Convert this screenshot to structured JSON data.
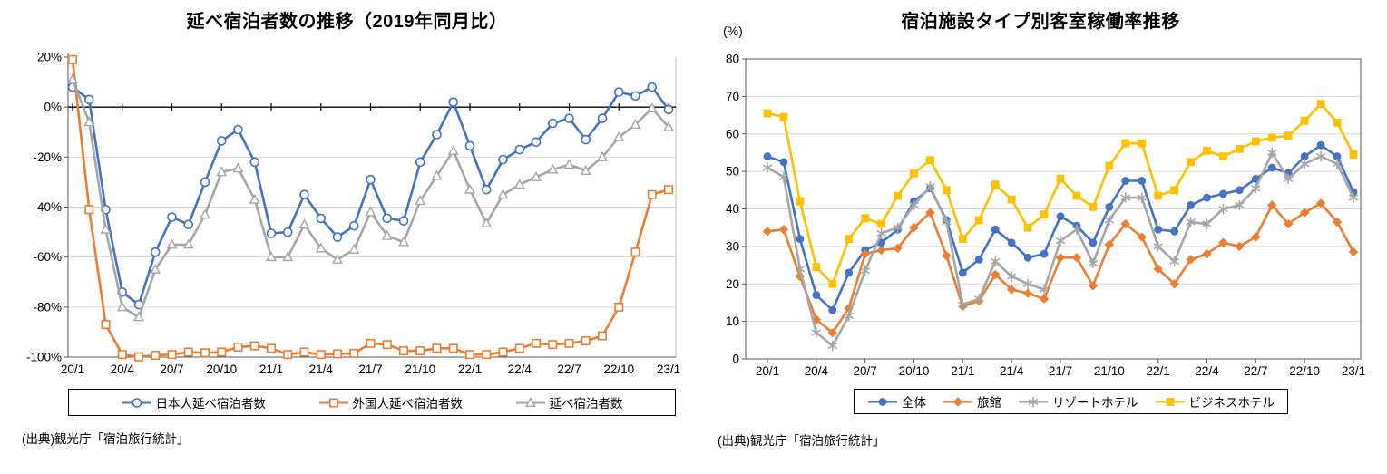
{
  "chart_data": [
    {
      "type": "line",
      "title": "延べ宿泊者数の推移（2019年同月比）",
      "source": "(出典)観光庁「宿泊旅行統計」",
      "n_points": 37,
      "x_tick_labels": [
        "20/1",
        "20/4",
        "20/7",
        "20/10",
        "21/1",
        "21/4",
        "21/7",
        "21/10",
        "22/1",
        "22/4",
        "22/7",
        "22/10",
        "23/1"
      ],
      "months_per_tick": 3,
      "ylim": [
        -100,
        20
      ],
      "y_ticks": [
        20,
        0,
        -20,
        -40,
        -60,
        -80,
        -100
      ],
      "y_tick_labels": [
        "20%",
        "0%",
        "-20%",
        "-40%",
        "-60%",
        "-80%",
        "-100%"
      ],
      "grid": true,
      "legend_position": "bottom",
      "series": [
        {
          "name": "日本人延べ宿泊者数",
          "color": "#4472C4",
          "marker": "circle-open",
          "values": [
            8,
            3,
            -41,
            -74,
            -79,
            -58,
            -44,
            -47,
            -30,
            -13.5,
            -9,
            -22,
            -50.5,
            -50,
            -35,
            -44.5,
            -52,
            -47.5,
            -29,
            -44.5,
            -45.5,
            -22,
            -11,
            2,
            -15.5,
            -33,
            -21,
            -17,
            -14,
            -6.5,
            -4.5,
            -13,
            -4.5,
            6,
            4.5,
            8,
            -1
          ]
        },
        {
          "name": "外国人延べ宿泊者数",
          "color": "#ED7D31",
          "marker": "square-open",
          "values": [
            19,
            -41,
            -87,
            -99,
            -99.9,
            -99.3,
            -99,
            -98,
            -98.3,
            -98,
            -96,
            -95.5,
            -96.5,
            -99,
            -98,
            -99,
            -98.7,
            -98.5,
            -94.5,
            -95,
            -97.5,
            -97.5,
            -96.5,
            -96.5,
            -99,
            -99,
            -98,
            -96.5,
            -94.5,
            -95,
            -94.5,
            -93.5,
            -91.5,
            -80,
            -58,
            -35,
            -33
          ]
        },
        {
          "name": "延べ宿泊者数",
          "color": "#A6A6A6",
          "marker": "triangle-open",
          "values": [
            11,
            -6,
            -49,
            -80,
            -84,
            -65,
            -55,
            -55,
            -43,
            -26,
            -24.5,
            -37,
            -60,
            -60,
            -47,
            -56.5,
            -61,
            -57,
            -42,
            -51.5,
            -54,
            -37.5,
            -27.5,
            -17.5,
            -33,
            -46.5,
            -35,
            -31,
            -28,
            -25,
            -23,
            -25.5,
            -20,
            -12,
            -7,
            -0.5,
            -8
          ]
        }
      ]
    },
    {
      "type": "line",
      "title": "宿泊施設タイプ別客室稼働率推移",
      "unit_label": "(%)",
      "source": "(出典)観光庁「宿泊旅行統計」",
      "n_points": 37,
      "x_tick_labels": [
        "20/1",
        "20/4",
        "20/7",
        "20/10",
        "21/1",
        "21/4",
        "21/7",
        "21/10",
        "22/1",
        "22/4",
        "22/7",
        "22/10",
        "23/1"
      ],
      "months_per_tick": 3,
      "ylim": [
        0,
        80
      ],
      "y_ticks": [
        80,
        70,
        60,
        50,
        40,
        30,
        20,
        10,
        0
      ],
      "y_tick_labels": [
        "80",
        "70",
        "60",
        "50",
        "40",
        "30",
        "20",
        "10",
        "0"
      ],
      "grid": true,
      "legend_position": "bottom",
      "series": [
        {
          "name": "全体",
          "color": "#4472C4",
          "marker": "circle",
          "values": [
            54,
            52.5,
            32,
            17,
            13,
            23,
            29,
            31,
            34.5,
            42,
            45.5,
            37,
            23,
            26.5,
            34.5,
            31,
            27,
            28,
            38,
            35.5,
            31,
            40.5,
            47.5,
            47.5,
            34.5,
            34,
            41,
            43,
            44,
            45,
            48,
            51,
            49.5,
            54,
            57,
            54,
            44.5
          ]
        },
        {
          "name": "旅館",
          "color": "#ED7D31",
          "marker": "diamond",
          "values": [
            34,
            34.5,
            22,
            10.5,
            7,
            13.5,
            28,
            29,
            29.5,
            35,
            39,
            27.5,
            14,
            15.5,
            22.5,
            18.5,
            17.5,
            16,
            27,
            27,
            19.5,
            30.5,
            36,
            32.5,
            24,
            20,
            26.5,
            28,
            31,
            30,
            32.5,
            41,
            36,
            39,
            41.5,
            36.5,
            28.5
          ]
        },
        {
          "name": "リゾートホテル",
          "color": "#A6A6A6",
          "marker": "asterisk",
          "values": [
            51,
            48.5,
            24,
            7,
            3.5,
            11.5,
            23.5,
            33.5,
            35,
            41,
            46,
            36.5,
            14.5,
            16,
            26,
            22,
            20,
            18.5,
            31.5,
            34.5,
            25.5,
            37,
            43,
            43,
            30,
            26,
            36.5,
            36,
            40,
            41,
            45.5,
            55,
            48,
            52,
            54,
            52,
            43
          ]
        },
        {
          "name": "ビジネスホテル",
          "color": "#FFC000",
          "marker": "square",
          "values": [
            65.5,
            64.5,
            42,
            24.5,
            20,
            32,
            37.5,
            36,
            43.5,
            49.5,
            53,
            45,
            32,
            37,
            46.5,
            42.5,
            35,
            38.5,
            48,
            43.5,
            40.5,
            51.5,
            57.5,
            57.5,
            43.5,
            45,
            52.5,
            55.5,
            54,
            56,
            58,
            59,
            59.5,
            63.5,
            68,
            63,
            54.5
          ]
        }
      ]
    }
  ]
}
